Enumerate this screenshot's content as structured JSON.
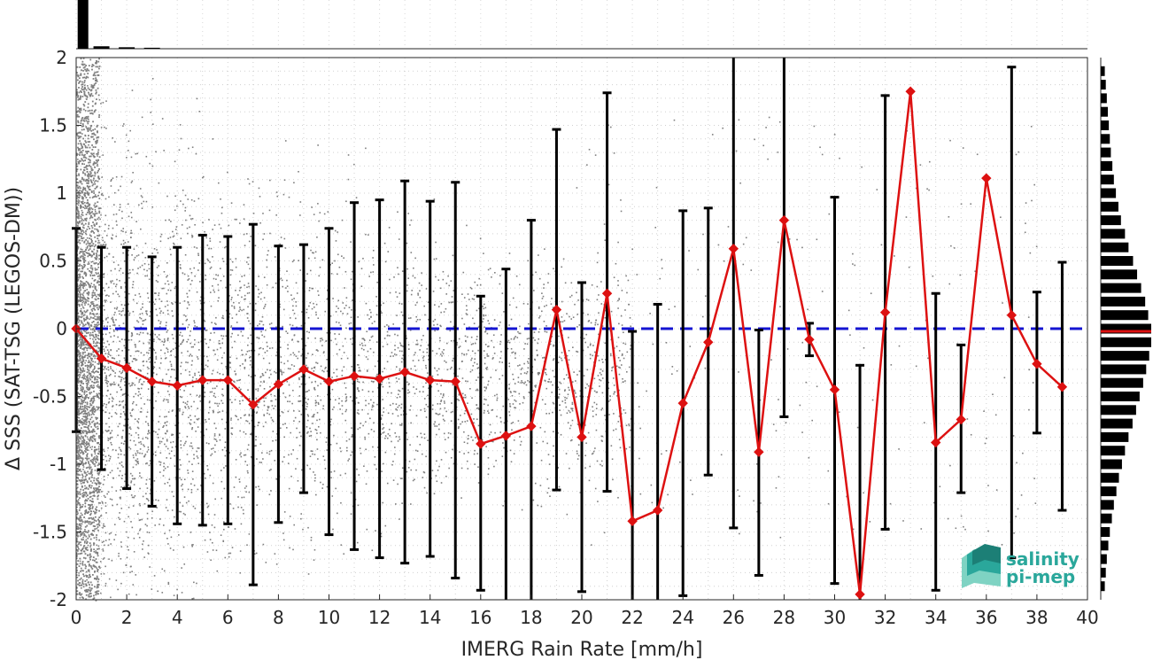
{
  "chart_data": {
    "type": "line",
    "xlabel": "IMERG Rain Rate [mm/h]",
    "ylabel": "Δ SSS (SAT-TSG (LEGOS-DM))",
    "xlim": [
      0,
      40
    ],
    "ylim": [
      -2,
      2
    ],
    "xticks": [
      "0",
      "2",
      "4",
      "6",
      "8",
      "10",
      "12",
      "14",
      "16",
      "18",
      "20",
      "22",
      "24",
      "26",
      "28",
      "30",
      "32",
      "34",
      "36",
      "38",
      "40"
    ],
    "yticks": [
      "2",
      "1.5",
      "1",
      "0.5",
      "0",
      "-0.5",
      "-1",
      "-1.5",
      "-2"
    ],
    "grid": true,
    "reference_line": {
      "y": 0,
      "color": "#1414d2",
      "style": "dashed"
    },
    "series": [
      {
        "type": "line-with-errorbars",
        "color": "#dd1111",
        "marker": "diamond",
        "x": [
          0,
          1,
          2,
          3,
          4,
          5,
          6,
          7,
          8,
          9,
          10,
          11,
          12,
          13,
          14,
          15,
          16,
          17,
          18,
          19,
          20,
          21,
          22,
          23,
          24,
          25,
          26,
          27,
          28,
          29,
          30,
          31,
          32,
          33,
          34,
          35,
          36,
          37,
          38,
          39
        ],
        "y": [
          0,
          -0.22,
          -0.29,
          -0.39,
          -0.42,
          -0.38,
          -0.38,
          -0.56,
          -0.41,
          -0.3,
          -0.39,
          -0.35,
          -0.37,
          -0.32,
          -0.38,
          -0.39,
          -0.85,
          -0.79,
          -0.72,
          0.14,
          -0.8,
          0.26,
          -1.42,
          -1.34,
          -0.55,
          -0.1,
          0.59,
          -0.91,
          0.8,
          -0.08,
          -0.45,
          -1.96,
          0.12,
          1.75,
          -0.84,
          -0.67,
          1.11,
          0.1,
          -0.26,
          -0.43
        ],
        "err_upper": [
          0.74,
          0.6,
          0.6,
          0.53,
          0.6,
          0.69,
          0.68,
          0.77,
          0.61,
          0.62,
          0.74,
          0.93,
          0.95,
          1.09,
          0.94,
          1.08,
          0.24,
          0.44,
          0.8,
          1.47,
          0.34,
          1.74,
          -0.02,
          0.18,
          0.87,
          0.89,
          2.0,
          -0.01,
          2.0,
          0.04,
          0.97,
          -0.27,
          1.72,
          1.75,
          0.26,
          -0.12,
          1.11,
          1.93,
          0.27,
          0.49
        ],
        "err_lower": [
          -0.76,
          -1.04,
          -1.18,
          -1.31,
          -1.44,
          -1.45,
          -1.44,
          -1.89,
          -1.43,
          -1.21,
          -1.52,
          -1.63,
          -1.69,
          -1.73,
          -1.68,
          -1.84,
          -1.93,
          -2.0,
          -2.0,
          -1.19,
          -1.94,
          -1.2,
          -2.0,
          -2.0,
          -1.97,
          -1.08,
          -1.47,
          -1.82,
          -0.65,
          -0.2,
          -1.88,
          -2.0,
          -1.48,
          1.75,
          -1.93,
          -1.21,
          1.11,
          -1.69,
          -0.77,
          -1.34
        ]
      }
    ],
    "scatter": {
      "color": "#7f7f7f"
    },
    "top_histogram": {
      "bins_x": [
        0.2,
        1,
        2,
        3
      ],
      "relative_heights": [
        1.0,
        0.05,
        0.03,
        0.02
      ]
    },
    "right_histogram": {
      "bins_y": [
        1.9,
        1.8,
        1.7,
        1.6,
        1.5,
        1.4,
        1.3,
        1.2,
        1.1,
        1.0,
        0.9,
        0.8,
        0.7,
        0.6,
        0.5,
        0.4,
        0.3,
        0.2,
        0.1,
        0.0,
        -0.1,
        -0.2,
        -0.3,
        -0.4,
        -0.5,
        -0.6,
        -0.7,
        -0.8,
        -0.9,
        -1.0,
        -1.1,
        -1.2,
        -1.3,
        -1.4,
        -1.5,
        -1.6,
        -1.7,
        -1.8,
        -1.9
      ],
      "relative_widths": [
        0.08,
        0.1,
        0.12,
        0.14,
        0.16,
        0.18,
        0.2,
        0.23,
        0.26,
        0.3,
        0.35,
        0.4,
        0.48,
        0.55,
        0.64,
        0.72,
        0.8,
        0.88,
        0.94,
        1.0,
        1.0,
        0.96,
        0.9,
        0.84,
        0.77,
        0.7,
        0.63,
        0.55,
        0.48,
        0.42,
        0.36,
        0.31,
        0.26,
        0.22,
        0.18,
        0.15,
        0.12,
        0.1,
        0.08
      ],
      "mean_line": {
        "y": -0.02,
        "color": "#dd1111"
      }
    },
    "logo": {
      "line1": "salinity",
      "line2": "pi-mep"
    }
  }
}
